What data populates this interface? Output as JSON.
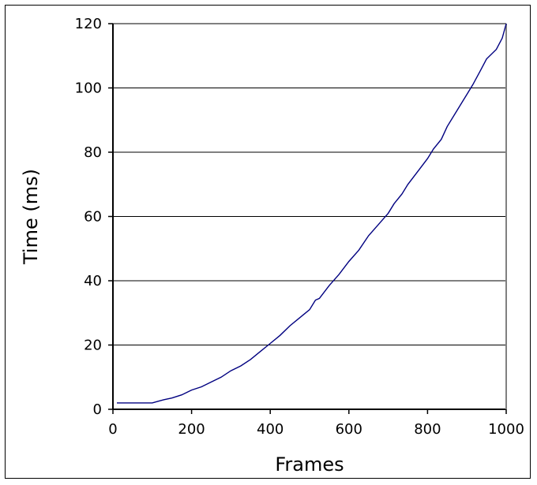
{
  "chart_data": {
    "type": "line",
    "title": "",
    "xlabel": "Frames",
    "ylabel": "Time (ms)",
    "xlim": [
      0,
      1000
    ],
    "ylim": [
      0,
      120
    ],
    "x_ticks": [
      "0",
      "200",
      "400",
      "600",
      "800",
      "1000"
    ],
    "y_ticks": [
      "0",
      "20",
      "40",
      "60",
      "80",
      "100",
      "120"
    ],
    "grid": "horizontal",
    "legend": "none",
    "colors": {
      "line": "#000080",
      "grid": "#000000",
      "right_axis": "#808080"
    },
    "series": [
      {
        "x": [
          10,
          25,
          50,
          75,
          100,
          115,
          130,
          150,
          175,
          200,
          225,
          250,
          275,
          300,
          325,
          350,
          375,
          400,
          425,
          450,
          475,
          500,
          515,
          525,
          550,
          575,
          600,
          625,
          650,
          675,
          700,
          715,
          735,
          750,
          775,
          800,
          815,
          835,
          850,
          875,
          900,
          915,
          935,
          950,
          975,
          990,
          1000
        ],
        "y": [
          2,
          2,
          2,
          2,
          2,
          2.5,
          3,
          3.5,
          4.5,
          6,
          7,
          8.5,
          10,
          12,
          13.5,
          15.5,
          18,
          20.5,
          23,
          26,
          28.5,
          31,
          34,
          34.5,
          38.5,
          42,
          46,
          49.5,
          54,
          57.5,
          61,
          64,
          67,
          70,
          74,
          78,
          81,
          84,
          88,
          93,
          98,
          101,
          105.5,
          109,
          112,
          115.5,
          120
        ]
      }
    ]
  }
}
